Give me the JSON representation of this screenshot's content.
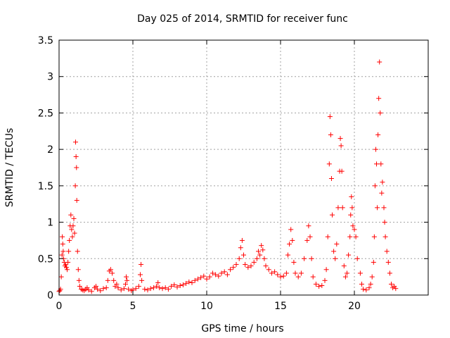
{
  "chart_data": {
    "type": "scatter",
    "title": "Day 025 of 2014, SRMTID for receiver func",
    "xlabel": "GPS time / hours",
    "ylabel": "SRMTID / TECUs",
    "xlim": [
      0,
      25
    ],
    "ylim": [
      0,
      3.5
    ],
    "x_ticks": [
      0,
      5,
      10,
      15,
      20
    ],
    "x_tick_labels": [
      "0",
      "5",
      "10",
      "15",
      "20"
    ],
    "y_ticks": [
      0,
      0.5,
      1,
      1.5,
      2,
      2.5,
      3,
      3.5
    ],
    "y_tick_labels": [
      "0",
      "0.5",
      "1",
      "1.5",
      "2",
      "2.5",
      "3",
      "3.5"
    ],
    "grid": true,
    "marker": "+",
    "color": "#ff0000",
    "series": [
      {
        "name": "SRMTID",
        "points": [
          [
            0.0,
            0.05
          ],
          [
            0.05,
            0.06
          ],
          [
            0.1,
            0.08
          ],
          [
            0.15,
            0.25
          ],
          [
            0.2,
            0.55
          ],
          [
            0.22,
            0.8
          ],
          [
            0.25,
            0.7
          ],
          [
            0.28,
            0.6
          ],
          [
            0.3,
            0.5
          ],
          [
            0.35,
            0.45
          ],
          [
            0.4,
            0.4
          ],
          [
            0.45,
            0.42
          ],
          [
            0.5,
            0.38
          ],
          [
            0.55,
            0.35
          ],
          [
            0.6,
            0.45
          ],
          [
            0.65,
            0.6
          ],
          [
            0.7,
            0.75
          ],
          [
            0.75,
            0.95
          ],
          [
            0.8,
            1.1
          ],
          [
            0.85,
            0.9
          ],
          [
            0.9,
            0.8
          ],
          [
            0.95,
            0.95
          ],
          [
            1.0,
            1.05
          ],
          [
            1.05,
            0.85
          ],
          [
            1.1,
            1.5
          ],
          [
            1.12,
            2.1
          ],
          [
            1.15,
            1.9
          ],
          [
            1.18,
            1.75
          ],
          [
            1.2,
            1.3
          ],
          [
            1.25,
            0.6
          ],
          [
            1.3,
            0.35
          ],
          [
            1.35,
            0.2
          ],
          [
            1.4,
            0.12
          ],
          [
            1.5,
            0.08
          ],
          [
            1.6,
            0.07
          ],
          [
            1.7,
            0.06
          ],
          [
            1.8,
            0.08
          ],
          [
            1.9,
            0.1
          ],
          [
            2.0,
            0.07
          ],
          [
            2.2,
            0.05
          ],
          [
            2.4,
            0.1
          ],
          [
            2.5,
            0.12
          ],
          [
            2.6,
            0.08
          ],
          [
            2.8,
            0.06
          ],
          [
            3.0,
            0.09
          ],
          [
            3.2,
            0.1
          ],
          [
            3.3,
            0.2
          ],
          [
            3.4,
            0.33
          ],
          [
            3.5,
            0.35
          ],
          [
            3.6,
            0.3
          ],
          [
            3.7,
            0.2
          ],
          [
            3.8,
            0.12
          ],
          [
            3.9,
            0.15
          ],
          [
            4.0,
            0.1
          ],
          [
            4.2,
            0.07
          ],
          [
            4.4,
            0.09
          ],
          [
            4.5,
            0.15
          ],
          [
            4.55,
            0.25
          ],
          [
            4.6,
            0.2
          ],
          [
            4.7,
            0.08
          ],
          [
            4.9,
            0.06
          ],
          [
            5.0,
            0.07
          ],
          [
            5.2,
            0.09
          ],
          [
            5.4,
            0.12
          ],
          [
            5.5,
            0.28
          ],
          [
            5.55,
            0.42
          ],
          [
            5.6,
            0.2
          ],
          [
            5.8,
            0.08
          ],
          [
            6.0,
            0.07
          ],
          [
            6.2,
            0.09
          ],
          [
            6.4,
            0.1
          ],
          [
            6.6,
            0.12
          ],
          [
            6.7,
            0.17
          ],
          [
            6.8,
            0.1
          ],
          [
            7.0,
            0.09
          ],
          [
            7.2,
            0.1
          ],
          [
            7.4,
            0.08
          ],
          [
            7.6,
            0.12
          ],
          [
            7.8,
            0.14
          ],
          [
            8.0,
            0.11
          ],
          [
            8.2,
            0.13
          ],
          [
            8.4,
            0.14
          ],
          [
            8.6,
            0.16
          ],
          [
            8.8,
            0.18
          ],
          [
            9.0,
            0.17
          ],
          [
            9.2,
            0.2
          ],
          [
            9.4,
            0.22
          ],
          [
            9.6,
            0.24
          ],
          [
            9.8,
            0.26
          ],
          [
            10.0,
            0.22
          ],
          [
            10.2,
            0.25
          ],
          [
            10.4,
            0.3
          ],
          [
            10.6,
            0.28
          ],
          [
            10.8,
            0.26
          ],
          [
            11.0,
            0.3
          ],
          [
            11.2,
            0.32
          ],
          [
            11.4,
            0.28
          ],
          [
            11.6,
            0.35
          ],
          [
            11.8,
            0.38
          ],
          [
            12.0,
            0.42
          ],
          [
            12.2,
            0.5
          ],
          [
            12.3,
            0.65
          ],
          [
            12.4,
            0.75
          ],
          [
            12.5,
            0.55
          ],
          [
            12.6,
            0.42
          ],
          [
            12.8,
            0.38
          ],
          [
            13.0,
            0.4
          ],
          [
            13.2,
            0.45
          ],
          [
            13.4,
            0.5
          ],
          [
            13.5,
            0.6
          ],
          [
            13.6,
            0.55
          ],
          [
            13.7,
            0.68
          ],
          [
            13.8,
            0.62
          ],
          [
            13.9,
            0.5
          ],
          [
            14.0,
            0.4
          ],
          [
            14.2,
            0.35
          ],
          [
            14.4,
            0.3
          ],
          [
            14.6,
            0.32
          ],
          [
            14.8,
            0.28
          ],
          [
            15.0,
            0.25
          ],
          [
            15.2,
            0.26
          ],
          [
            15.4,
            0.3
          ],
          [
            15.5,
            0.55
          ],
          [
            15.6,
            0.7
          ],
          [
            15.7,
            0.9
          ],
          [
            15.8,
            0.75
          ],
          [
            15.9,
            0.45
          ],
          [
            16.0,
            0.3
          ],
          [
            16.2,
            0.25
          ],
          [
            16.4,
            0.3
          ],
          [
            16.6,
            0.5
          ],
          [
            16.8,
            0.75
          ],
          [
            16.9,
            0.95
          ],
          [
            17.0,
            0.8
          ],
          [
            17.1,
            0.5
          ],
          [
            17.2,
            0.25
          ],
          [
            17.4,
            0.15
          ],
          [
            17.6,
            0.12
          ],
          [
            17.8,
            0.13
          ],
          [
            18.0,
            0.2
          ],
          [
            18.1,
            0.35
          ],
          [
            18.2,
            0.8
          ],
          [
            18.3,
            1.8
          ],
          [
            18.35,
            2.45
          ],
          [
            18.4,
            2.2
          ],
          [
            18.45,
            1.6
          ],
          [
            18.5,
            1.1
          ],
          [
            18.6,
            0.6
          ],
          [
            18.7,
            0.5
          ],
          [
            18.8,
            0.7
          ],
          [
            18.9,
            1.2
          ],
          [
            19.0,
            1.7
          ],
          [
            19.05,
            2.15
          ],
          [
            19.1,
            2.05
          ],
          [
            19.15,
            1.7
          ],
          [
            19.2,
            1.2
          ],
          [
            19.3,
            0.4
          ],
          [
            19.4,
            0.25
          ],
          [
            19.5,
            0.3
          ],
          [
            19.6,
            0.55
          ],
          [
            19.7,
            0.8
          ],
          [
            19.75,
            1.1
          ],
          [
            19.8,
            1.35
          ],
          [
            19.85,
            1.2
          ],
          [
            19.9,
            0.95
          ],
          [
            20.0,
            0.9
          ],
          [
            20.1,
            0.8
          ],
          [
            20.2,
            0.5
          ],
          [
            20.4,
            0.3
          ],
          [
            20.5,
            0.15
          ],
          [
            20.6,
            0.08
          ],
          [
            20.8,
            0.07
          ],
          [
            21.0,
            0.1
          ],
          [
            21.1,
            0.15
          ],
          [
            21.2,
            0.25
          ],
          [
            21.3,
            0.45
          ],
          [
            21.35,
            0.8
          ],
          [
            21.4,
            1.5
          ],
          [
            21.45,
            2.0
          ],
          [
            21.5,
            1.8
          ],
          [
            21.55,
            1.2
          ],
          [
            21.6,
            2.2
          ],
          [
            21.65,
            2.7
          ],
          [
            21.7,
            3.2
          ],
          [
            21.75,
            2.5
          ],
          [
            21.8,
            1.8
          ],
          [
            21.85,
            1.4
          ],
          [
            21.9,
            1.55
          ],
          [
            22.0,
            1.2
          ],
          [
            22.05,
            1.0
          ],
          [
            22.1,
            0.8
          ],
          [
            22.2,
            0.6
          ],
          [
            22.3,
            0.45
          ],
          [
            22.4,
            0.3
          ],
          [
            22.5,
            0.15
          ],
          [
            22.6,
            0.1
          ],
          [
            22.7,
            0.12
          ],
          [
            22.8,
            0.09
          ]
        ]
      }
    ]
  }
}
